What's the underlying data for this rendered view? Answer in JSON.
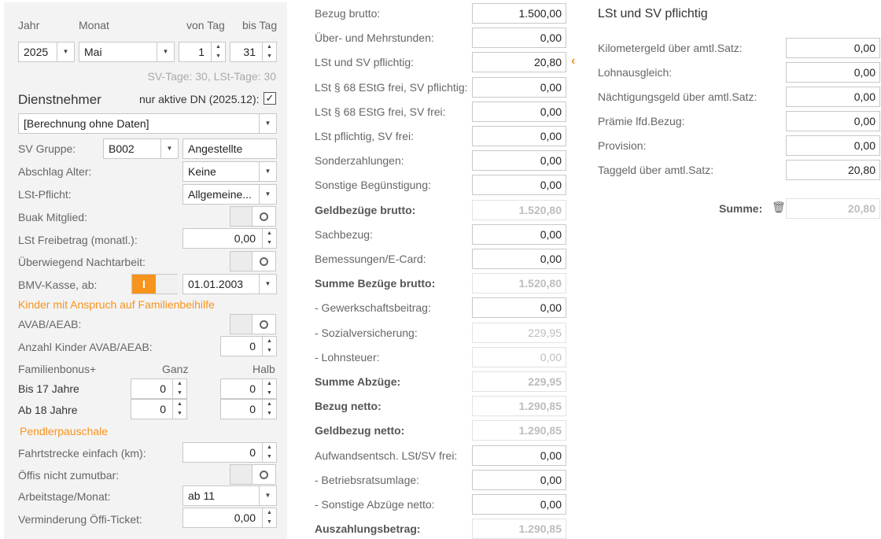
{
  "period": {
    "year_label": "Jahr",
    "month_label": "Monat",
    "from_day_label": "von Tag",
    "to_day_label": "bis Tag",
    "year": "2025",
    "month": "Mai",
    "from_day": "1",
    "to_day": "31",
    "days_info": "SV-Tage: 30,  LSt-Tage: 30"
  },
  "employee": {
    "title": "Dienstnehmer",
    "active_only_label": "nur aktive DN (2025.12):",
    "active_only_checked": true,
    "selected": "[Berechnung ohne Daten]",
    "sv_group_label": "SV Gruppe:",
    "sv_group": "B002",
    "sv_group_name": "Angestellte",
    "abschlag_label": "Abschlag Alter:",
    "abschlag": "Keine",
    "lst_pflicht_label": "LSt-Pflicht:",
    "lst_pflicht": "Allgemeine...",
    "buak_label": "Buak Mitglied:",
    "freibetrag_label": "LSt Freibetrag (monatl.):",
    "freibetrag": "0,00",
    "nachtarbeit_label": "Überwiegend Nachtarbeit:",
    "bmv_label": "BMV-Kasse, ab:",
    "bmv_on": "I",
    "bmv_date": "01.01.2003"
  },
  "children": {
    "heading": "Kinder mit Anspruch auf Familienbeihilfe",
    "avab_label": "AVAB/AEAB:",
    "count_label": "Anzahl Kinder AVAB/AEAB:",
    "count": "0",
    "bonus_label": "Familienbonus+",
    "full_label": "Ganz",
    "half_label": "Halb",
    "under17_label": "Bis 17 Jahre",
    "under17_full": "0",
    "under17_half": "0",
    "over18_label": "Ab 18 Jahre",
    "over18_full": "0",
    "over18_half": "0"
  },
  "commuter": {
    "heading": "Pendlerpauschale",
    "distance_label": "Fahrtstrecke einfach (km):",
    "distance": "0",
    "public_label": "Öffis nicht zumutbar:",
    "workdays_label": "Arbeitstage/Monat:",
    "workdays": "ab 11",
    "ticket_label": "Verminderung Öffi-Ticket:",
    "ticket": "0,00"
  },
  "calc": [
    {
      "label": "Bezug brutto:",
      "value": "1.500,00"
    },
    {
      "label": "Über- und Mehrstunden:",
      "value": "0,00"
    },
    {
      "label": "LSt und SV pflichtig:",
      "value": "20,80"
    },
    {
      "label": "LSt § 68 EStG frei, SV pflichtig:",
      "value": "0,00"
    },
    {
      "label": "LSt § 68 EStG frei, SV frei:",
      "value": "0,00"
    },
    {
      "label": "LSt pflichtig, SV frei:",
      "value": "0,00"
    },
    {
      "label": "Sonderzahlungen:",
      "value": "0,00"
    },
    {
      "label": "Sonstige Begünstigung:",
      "value": "0,00"
    },
    {
      "label": "Geldbezüge brutto:",
      "value": "1.520,80",
      "bold": true,
      "disabled": true
    },
    {
      "label": "Sachbezug:",
      "value": "0,00"
    },
    {
      "label": "Bemessungen/E-Card:",
      "value": "0,00"
    },
    {
      "label": "Summe Bezüge brutto:",
      "value": "1.520,80",
      "bold": true,
      "disabled": true
    },
    {
      "label": "- Gewerkschaftsbeitrag:",
      "value": "0,00"
    },
    {
      "label": "- Sozialversicherung:",
      "value": "229,95",
      "disabled": true
    },
    {
      "label": "- Lohnsteuer:",
      "value": "0,00",
      "disabled": true
    },
    {
      "label": "Summe Abzüge:",
      "value": "229,95",
      "bold": true,
      "disabled": true
    },
    {
      "label": "Bezug netto:",
      "value": "1.290,85",
      "bold": true,
      "disabled": true
    },
    {
      "label": "Geldbezug netto:",
      "value": "1.290,85",
      "bold": true,
      "disabled": true
    },
    {
      "label": "Aufwandsentsch. LSt/SV frei:",
      "value": "0,00"
    },
    {
      "label": "- Betriebsratsumlage:",
      "value": "0,00"
    },
    {
      "label": "- Sonstige Abzüge netto:",
      "value": "0,00"
    },
    {
      "label": "Auszahlungsbetrag:",
      "value": "1.290,85",
      "bold": true,
      "disabled": true
    }
  ],
  "detail": {
    "title": "LSt und SV pflichtig",
    "rows": [
      {
        "label": "Kilometergeld über amtl.Satz:",
        "value": "0,00"
      },
      {
        "label": "Lohnausgleich:",
        "value": "0,00"
      },
      {
        "label": "Nächtigungsgeld über amtl.Satz:",
        "value": "0,00"
      },
      {
        "label": "Prämie lfd.Bezug:",
        "value": "0,00"
      },
      {
        "label": "Provision:",
        "value": "0,00"
      },
      {
        "label": "Taggeld über amtl.Satz:",
        "value": "20,80"
      }
    ],
    "sum_label": "Summe:",
    "sum": "20,80"
  },
  "colors": {
    "accent": "#f7941d",
    "panel": "#f3f3f3"
  }
}
